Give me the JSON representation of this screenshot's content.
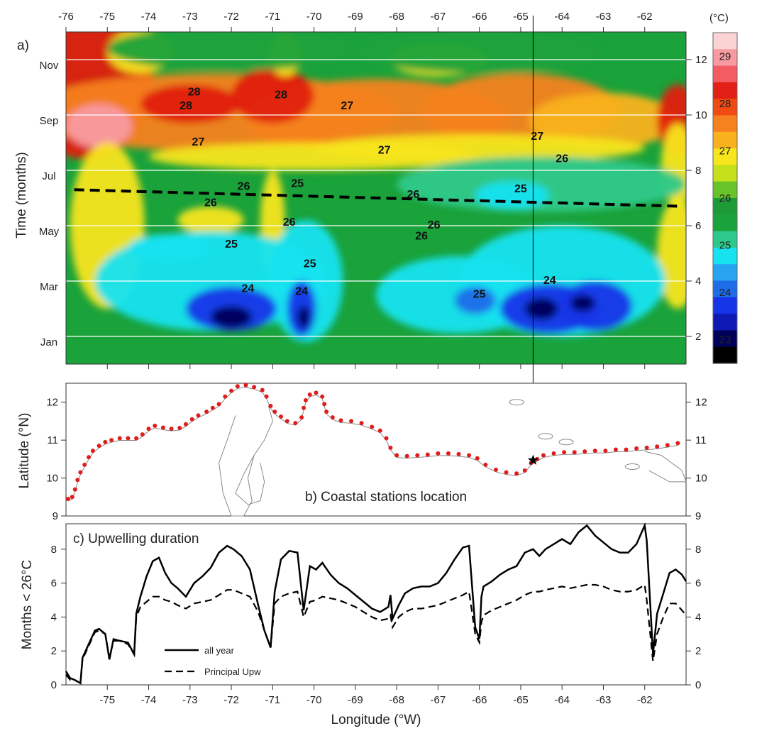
{
  "figure": {
    "panel_a_label": "a)",
    "panel_b_label": "b) Coastal stations location",
    "panel_c_label": "c) Upwelling duration",
    "colorbar_unit": "(°C)",
    "colors": {
      "warm": "#e02010",
      "orange": "#f5821f",
      "yellow": "#f7e51e",
      "green": "#1aa23b",
      "cyan": "#17e3f0",
      "blue": "#1735e8",
      "navy": "#00005a",
      "station_dot": "#e11c1c",
      "dashed_line": "#000000"
    }
  },
  "chart_data": [
    {
      "type": "heatmap",
      "id": "a",
      "title": "",
      "ylabel": "Time (months)",
      "x_ticks_top": [
        "-76",
        "-75",
        "-74",
        "-73",
        "-72",
        "-71",
        "-70",
        "-69",
        "-68",
        "-67",
        "-66",
        "-65",
        "-64",
        "-63",
        "-62"
      ],
      "xlim": [
        -76,
        -61
      ],
      "ylim": [
        1,
        13
      ],
      "y_ticks_left": [
        "Nov",
        "Sep",
        "Jul",
        "May",
        "Mar",
        "Jan"
      ],
      "y_ticks_left_values": [
        11.8,
        9.8,
        7.8,
        5.8,
        3.8,
        1.8
      ],
      "y_ticks_right": [
        "2",
        "4",
        "6",
        "8",
        "10",
        "12"
      ],
      "y_ticks_right_values": [
        2,
        4,
        6,
        8,
        10,
        12
      ],
      "colorbar_ticks": [
        "29",
        "28",
        "27",
        "26",
        "25",
        "24",
        "23"
      ],
      "colorbar_levels": [
        29.5,
        29,
        28.5,
        28,
        27.5,
        27,
        26.5,
        26,
        25.5,
        25,
        24.5,
        24,
        23.5,
        23,
        22.5
      ],
      "colorbar_colors": [
        "#fcd3d5",
        "#f99aa2",
        "#f45c64",
        "#e32015",
        "#ef4b12",
        "#f5821f",
        "#f9b21e",
        "#f7e51e",
        "#c6e01c",
        "#68c32a",
        "#1c9b37",
        "#1aa23b",
        "#2ec98a",
        "#17e3f0",
        "#27a3f0",
        "#1e6ce8",
        "#1735e8",
        "#0f1ab4",
        "#00005a",
        "#000000"
      ],
      "contour_labels": [
        {
          "text": "28",
          "lon": -72.9,
          "month": 10.7
        },
        {
          "text": "28",
          "lon": -73.1,
          "month": 10.2
        },
        {
          "text": "28",
          "lon": -70.8,
          "month": 10.6
        },
        {
          "text": "27",
          "lon": -69.2,
          "month": 10.2
        },
        {
          "text": "27",
          "lon": -72.8,
          "month": 8.9
        },
        {
          "text": "27",
          "lon": -68.3,
          "month": 8.6
        },
        {
          "text": "27",
          "lon": -64.6,
          "month": 9.1
        },
        {
          "text": "26",
          "lon": -64.0,
          "month": 8.3
        },
        {
          "text": "26",
          "lon": -72.5,
          "month": 6.7
        },
        {
          "text": "26",
          "lon": -71.7,
          "month": 7.3
        },
        {
          "text": "25",
          "lon": -70.4,
          "month": 7.4
        },
        {
          "text": "26",
          "lon": -67.6,
          "month": 7.0
        },
        {
          "text": "25",
          "lon": -65.0,
          "month": 7.2
        },
        {
          "text": "26",
          "lon": -70.6,
          "month": 6.0
        },
        {
          "text": "26",
          "lon": -67.1,
          "month": 5.9
        },
        {
          "text": "26",
          "lon": -67.4,
          "month": 5.5
        },
        {
          "text": "25",
          "lon": -72.0,
          "month": 5.2
        },
        {
          "text": "25",
          "lon": -70.1,
          "month": 4.5
        },
        {
          "text": "24",
          "lon": -71.6,
          "month": 3.6
        },
        {
          "text": "24",
          "lon": -70.3,
          "month": 3.5
        },
        {
          "text": "25",
          "lon": -66.0,
          "month": 3.4
        },
        {
          "text": "24",
          "lon": -64.3,
          "month": 3.9
        }
      ],
      "dashed_trend": {
        "start": {
          "lon": -75.8,
          "month": 7.3
        },
        "end": {
          "lon": -61.1,
          "month": 6.7
        }
      },
      "vertical_marker_lon": -64.7
    },
    {
      "type": "scatter",
      "id": "b",
      "ylabel": "Latitude (°N)",
      "ylim": [
        9,
        12.5
      ],
      "y_ticks": [
        "9",
        "10",
        "11",
        "12"
      ],
      "xlim": [
        -76,
        -61
      ],
      "star": {
        "lon": -64.7,
        "lat": 10.47
      },
      "stations": [
        [
          -75.95,
          9.45
        ],
        [
          -75.85,
          9.5
        ],
        [
          -75.78,
          9.7
        ],
        [
          -75.72,
          9.95
        ],
        [
          -75.65,
          10.15
        ],
        [
          -75.55,
          10.35
        ],
        [
          -75.45,
          10.55
        ],
        [
          -75.35,
          10.72
        ],
        [
          -75.2,
          10.85
        ],
        [
          -75.05,
          10.95
        ],
        [
          -74.9,
          11.0
        ],
        [
          -74.7,
          11.05
        ],
        [
          -74.5,
          11.05
        ],
        [
          -74.3,
          11.05
        ],
        [
          -74.15,
          11.15
        ],
        [
          -74.0,
          11.3
        ],
        [
          -73.85,
          11.38
        ],
        [
          -73.65,
          11.33
        ],
        [
          -73.45,
          11.3
        ],
        [
          -73.25,
          11.32
        ],
        [
          -73.1,
          11.42
        ],
        [
          -72.95,
          11.55
        ],
        [
          -72.8,
          11.65
        ],
        [
          -72.6,
          11.75
        ],
        [
          -72.45,
          11.85
        ],
        [
          -72.3,
          11.95
        ],
        [
          -72.15,
          12.15
        ],
        [
          -72.0,
          12.3
        ],
        [
          -71.85,
          12.42
        ],
        [
          -71.65,
          12.45
        ],
        [
          -71.45,
          12.4
        ],
        [
          -71.25,
          12.32
        ],
        [
          -71.15,
          12.15
        ],
        [
          -71.05,
          11.9
        ],
        [
          -70.95,
          11.75
        ],
        [
          -70.8,
          11.62
        ],
        [
          -70.65,
          11.5
        ],
        [
          -70.45,
          11.45
        ],
        [
          -70.3,
          11.6
        ],
        [
          -70.25,
          11.85
        ],
        [
          -70.2,
          12.05
        ],
        [
          -70.1,
          12.2
        ],
        [
          -69.95,
          12.25
        ],
        [
          -69.8,
          12.15
        ],
        [
          -69.75,
          11.95
        ],
        [
          -69.7,
          11.75
        ],
        [
          -69.55,
          11.6
        ],
        [
          -69.35,
          11.52
        ],
        [
          -69.1,
          11.5
        ],
        [
          -68.85,
          11.45
        ],
        [
          -68.6,
          11.35
        ],
        [
          -68.4,
          11.25
        ],
        [
          -68.25,
          11.05
        ],
        [
          -68.15,
          10.8
        ],
        [
          -68.0,
          10.6
        ],
        [
          -67.75,
          10.58
        ],
        [
          -67.5,
          10.6
        ],
        [
          -67.25,
          10.62
        ],
        [
          -67.0,
          10.65
        ],
        [
          -66.75,
          10.65
        ],
        [
          -66.5,
          10.63
        ],
        [
          -66.25,
          10.6
        ],
        [
          -66.05,
          10.52
        ],
        [
          -65.85,
          10.35
        ],
        [
          -65.6,
          10.22
        ],
        [
          -65.35,
          10.15
        ],
        [
          -65.1,
          10.12
        ],
        [
          -64.9,
          10.2
        ],
        [
          -64.75,
          10.4
        ],
        [
          -64.6,
          10.5
        ],
        [
          -64.45,
          10.6
        ],
        [
          -64.2,
          10.65
        ],
        [
          -63.95,
          10.68
        ],
        [
          -63.7,
          10.68
        ],
        [
          -63.45,
          10.7
        ],
        [
          -63.2,
          10.72
        ],
        [
          -62.95,
          10.72
        ],
        [
          -62.7,
          10.75
        ],
        [
          -62.45,
          10.75
        ],
        [
          -62.2,
          10.78
        ],
        [
          -61.95,
          10.8
        ],
        [
          -61.7,
          10.83
        ],
        [
          -61.45,
          10.87
        ],
        [
          -61.2,
          10.92
        ]
      ]
    },
    {
      "type": "line",
      "id": "c",
      "ylabel": "Months < 26°C",
      "xlabel": "Longitude (°W)",
      "xlim": [
        -76,
        -61
      ],
      "ylim": [
        0,
        9.5
      ],
      "x_ticks": [
        "-75",
        "-74",
        "-73",
        "-72",
        "-71",
        "-70",
        "-69",
        "-68",
        "-67",
        "-66",
        "-65",
        "-64",
        "-63",
        "-62"
      ],
      "y_ticks": [
        "0",
        "2",
        "4",
        "6",
        "8"
      ],
      "legend": [
        "all year",
        "Principal Upw"
      ],
      "legend_position": "bottom-left",
      "series": [
        {
          "name": "all year",
          "style": "solid",
          "x": [
            -76.0,
            -75.9,
            -75.8,
            -75.65,
            -75.6,
            -75.45,
            -75.3,
            -75.2,
            -75.05,
            -74.95,
            -74.85,
            -74.7,
            -74.5,
            -74.35,
            -74.3,
            -74.2,
            -74.05,
            -73.9,
            -73.75,
            -73.6,
            -73.45,
            -73.3,
            -73.1,
            -72.9,
            -72.7,
            -72.5,
            -72.3,
            -72.1,
            -71.95,
            -71.75,
            -71.55,
            -71.35,
            -71.2,
            -71.05,
            -70.95,
            -70.8,
            -70.6,
            -70.4,
            -70.25,
            -70.1,
            -69.95,
            -69.8,
            -69.6,
            -69.4,
            -69.2,
            -69.0,
            -68.8,
            -68.6,
            -68.4,
            -68.2,
            -68.15,
            -68.1,
            -67.95,
            -67.8,
            -67.6,
            -67.4,
            -67.2,
            -67.0,
            -66.8,
            -66.6,
            -66.4,
            -66.25,
            -66.1,
            -66.0,
            -65.95,
            -65.9,
            -65.7,
            -65.5,
            -65.3,
            -65.1,
            -64.9,
            -64.7,
            -64.55,
            -64.4,
            -64.2,
            -64.0,
            -63.8,
            -63.6,
            -63.4,
            -63.2,
            -63.0,
            -62.8,
            -62.6,
            -62.4,
            -62.2,
            -62.0,
            -61.95,
            -61.8,
            -61.7,
            -61.55,
            -61.4,
            -61.25,
            -61.1,
            -61.0
          ],
          "y": [
            0.8,
            0.4,
            0.3,
            0.1,
            1.6,
            2.4,
            3.2,
            3.3,
            3.0,
            1.5,
            2.7,
            2.6,
            2.5,
            1.8,
            4.2,
            5.2,
            6.4,
            7.3,
            7.5,
            6.6,
            6.0,
            5.7,
            5.2,
            6.0,
            6.4,
            6.9,
            7.8,
            8.2,
            8.0,
            7.6,
            6.8,
            4.7,
            3.2,
            2.2,
            5.5,
            7.4,
            7.9,
            7.8,
            4.4,
            7.0,
            6.8,
            7.2,
            6.5,
            6.0,
            5.7,
            5.3,
            4.9,
            4.5,
            4.3,
            4.6,
            5.3,
            3.9,
            4.7,
            5.4,
            5.7,
            5.8,
            5.8,
            6.0,
            6.6,
            7.4,
            8.1,
            8.2,
            3.4,
            2.7,
            5.2,
            5.8,
            6.1,
            6.5,
            6.8,
            7.0,
            7.8,
            8.0,
            7.6,
            8.0,
            8.3,
            8.6,
            8.3,
            9.0,
            9.4,
            8.8,
            8.4,
            8.0,
            7.8,
            7.8,
            8.3,
            9.4,
            8.5,
            1.8,
            4.2,
            5.4,
            6.6,
            6.8,
            6.5,
            6.1
          ]
        },
        {
          "name": "Principal Upw",
          "style": "dashed",
          "x": [
            -76.0,
            -75.9,
            -75.8,
            -75.65,
            -75.6,
            -75.45,
            -75.3,
            -75.2,
            -75.05,
            -74.95,
            -74.85,
            -74.7,
            -74.5,
            -74.35,
            -74.3,
            -74.2,
            -74.05,
            -73.9,
            -73.75,
            -73.6,
            -73.45,
            -73.3,
            -73.1,
            -72.9,
            -72.7,
            -72.5,
            -72.3,
            -72.1,
            -71.95,
            -71.75,
            -71.55,
            -71.35,
            -71.2,
            -71.05,
            -70.95,
            -70.8,
            -70.6,
            -70.4,
            -70.25,
            -70.1,
            -69.95,
            -69.8,
            -69.6,
            -69.4,
            -69.2,
            -69.0,
            -68.8,
            -68.6,
            -68.4,
            -68.2,
            -68.15,
            -68.1,
            -67.95,
            -67.8,
            -67.6,
            -67.4,
            -67.2,
            -67.0,
            -66.8,
            -66.6,
            -66.4,
            -66.25,
            -66.1,
            -66.0,
            -65.95,
            -65.9,
            -65.7,
            -65.5,
            -65.3,
            -65.1,
            -64.9,
            -64.7,
            -64.55,
            -64.4,
            -64.2,
            -64.0,
            -63.8,
            -63.6,
            -63.4,
            -63.2,
            -63.0,
            -62.8,
            -62.6,
            -62.4,
            -62.2,
            -62.0,
            -61.95,
            -61.8,
            -61.7,
            -61.55,
            -61.4,
            -61.25,
            -61.1,
            -61.0
          ],
          "y": [
            0.6,
            0.3,
            0.3,
            0.1,
            1.5,
            2.3,
            3.1,
            3.2,
            3.0,
            1.6,
            2.6,
            2.6,
            2.4,
            1.8,
            4.0,
            4.6,
            4.9,
            5.2,
            5.2,
            5.0,
            4.9,
            4.7,
            4.5,
            4.8,
            4.9,
            5.0,
            5.3,
            5.6,
            5.6,
            5.4,
            5.2,
            4.3,
            3.2,
            2.2,
            4.8,
            5.2,
            5.4,
            5.5,
            4.0,
            4.9,
            5.0,
            5.2,
            5.1,
            5.0,
            4.8,
            4.6,
            4.3,
            4.0,
            3.8,
            3.9,
            4.1,
            3.4,
            4.0,
            4.3,
            4.5,
            4.5,
            4.6,
            4.7,
            4.9,
            5.1,
            5.3,
            5.5,
            3.0,
            2.5,
            3.7,
            4.1,
            4.4,
            4.6,
            4.8,
            5.0,
            5.3,
            5.5,
            5.5,
            5.6,
            5.7,
            5.8,
            5.7,
            5.8,
            5.9,
            5.9,
            5.8,
            5.6,
            5.5,
            5.5,
            5.6,
            5.9,
            5.0,
            1.4,
            3.0,
            4.0,
            4.8,
            4.8,
            4.4,
            4.1
          ]
        }
      ]
    }
  ]
}
